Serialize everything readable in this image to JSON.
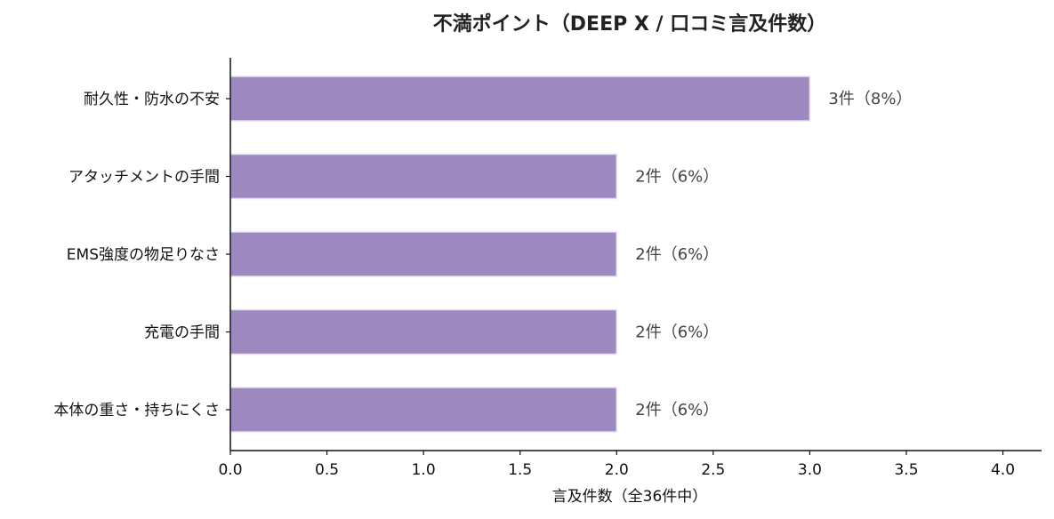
{
  "chart_data": {
    "type": "bar",
    "orientation": "horizontal",
    "title": "不満ポイント（DEEP X / 口コミ言及件数）",
    "xlabel": "言及件数（全36件中）",
    "ylabel": "",
    "categories": [
      "耐久性・防水の不安",
      "アタッチメントの手間",
      "EMS強度の物足りなさ",
      "充電の手間",
      "本体の重さ・持ちにくさ"
    ],
    "values": [
      3,
      2,
      2,
      2,
      2
    ],
    "data_labels": [
      "3件（8%）",
      "2件（6%）",
      "2件（6%）",
      "2件（6%）",
      "2件（6%）"
    ],
    "xlim": [
      0,
      4.2
    ],
    "xticks": [
      0.0,
      0.5,
      1.0,
      1.5,
      2.0,
      2.5,
      3.0,
      3.5,
      4.0
    ],
    "xtick_labels": [
      "0.0",
      "0.5",
      "1.0",
      "1.5",
      "2.0",
      "2.5",
      "3.0",
      "3.5",
      "4.0"
    ],
    "grid": false,
    "bar_color": "#9d88bf",
    "bar_edge_color": "#e6e0f0"
  }
}
